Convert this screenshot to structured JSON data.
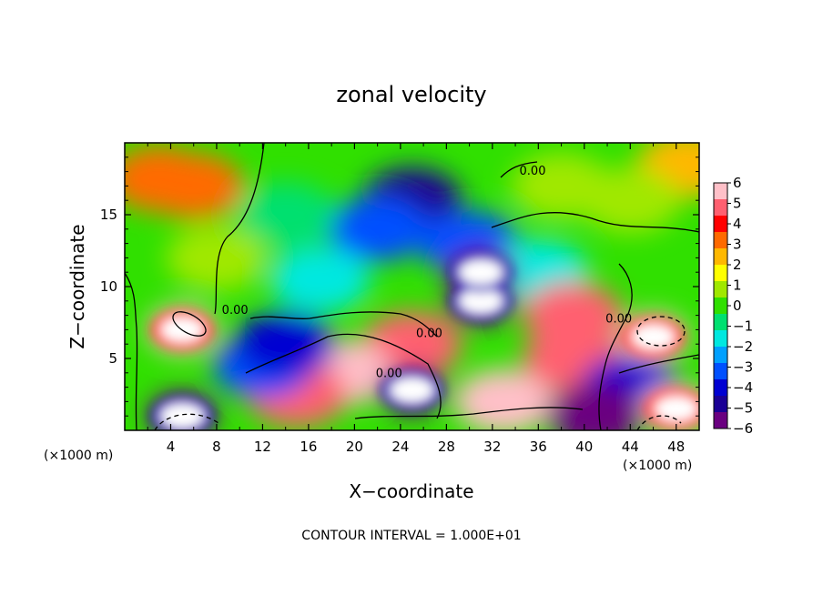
{
  "chart_data": {
    "type": "heatmap",
    "title": "zonal velocity",
    "xlabel": "X−coordinate",
    "ylabel": "Z−coordinate",
    "x_unit": "(×1000 m)",
    "y_unit": "(×1000 m)",
    "xlim": [
      0,
      50
    ],
    "ylim": [
      0,
      20
    ],
    "x_ticks": [
      4,
      8,
      12,
      16,
      20,
      24,
      28,
      32,
      36,
      40,
      44,
      48
    ],
    "y_ticks": [
      5,
      10,
      15
    ],
    "colorbar": {
      "min": -6,
      "max": 6,
      "ticks": [
        6,
        5,
        4,
        3,
        2,
        1,
        0,
        -1,
        -2,
        -3,
        -4,
        -5,
        -6
      ],
      "tick_labels": [
        "6",
        "5",
        "4",
        "3",
        "2",
        "1",
        "0",
        "−1",
        "−2",
        "−3",
        "−4",
        "−5",
        "−6"
      ],
      "colors": [
        "#6a0080",
        "#1a0095",
        "#0000d2",
        "#0050ff",
        "#00a0ff",
        "#00e8e0",
        "#00e070",
        "#30e000",
        "#a0e800",
        "#ffff00",
        "#ffb800",
        "#ff6a00",
        "#ff0000",
        "#ff6070",
        "#ffc0c8"
      ]
    },
    "contour_labels": [
      {
        "text": "0.00",
        "x": 35.5,
        "z": 17.8
      },
      {
        "text": "0.00",
        "x": 9.6,
        "z": 8.1
      },
      {
        "text": "0.00",
        "x": 26.5,
        "z": 6.5
      },
      {
        "text": "0.00",
        "x": 23.0,
        "z": 3.7
      },
      {
        "text": "0.00",
        "x": 43.0,
        "z": 7.5
      }
    ],
    "footnote": "CONTOUR INTERVAL = 1.000E+01",
    "grid": false,
    "legend": "colorbar-right",
    "features": [
      {
        "x": 25,
        "z": 16,
        "value": -4.5
      },
      {
        "x": 22,
        "z": 14,
        "value": -3.5
      },
      {
        "x": 30,
        "z": 13,
        "value": -3
      },
      {
        "x": 14,
        "z": 15,
        "value": -1
      },
      {
        "x": 3,
        "z": 17.5,
        "value": 3.5
      },
      {
        "x": 6,
        "z": 17,
        "value": 3.5
      },
      {
        "x": 49,
        "z": 18.5,
        "value": 2.5
      },
      {
        "x": 38,
        "z": 17,
        "value": 0.5
      },
      {
        "x": 44,
        "z": 16,
        "value": 1
      },
      {
        "x": 8,
        "z": 12,
        "value": 0.5
      },
      {
        "x": 36,
        "z": 11,
        "value": -1.5
      },
      {
        "x": 17,
        "z": 10.5,
        "value": -1.5
      },
      {
        "x": 5,
        "z": 7,
        "value": 8
      },
      {
        "x": 46,
        "z": 6.5,
        "value": 8
      },
      {
        "x": 31,
        "z": 9,
        "value": -8
      },
      {
        "x": 31,
        "z": 11,
        "value": -8
      },
      {
        "x": 25,
        "z": 6,
        "value": 5
      },
      {
        "x": 19,
        "z": 4,
        "value": 5.5
      },
      {
        "x": 15,
        "z": 2.5,
        "value": 5
      },
      {
        "x": 33,
        "z": 2,
        "value": 6
      },
      {
        "x": 39,
        "z": 8,
        "value": 4.5
      },
      {
        "x": 39,
        "z": 5,
        "value": 4.5
      },
      {
        "x": 25,
        "z": 2.8,
        "value": -8
      },
      {
        "x": 5,
        "z": 1,
        "value": -8
      },
      {
        "x": 12,
        "z": 4.5,
        "value": -3
      },
      {
        "x": 14,
        "z": 6,
        "value": -4
      },
      {
        "x": 44,
        "z": 3,
        "value": -4
      },
      {
        "x": 48,
        "z": 1.5,
        "value": 8
      },
      {
        "x": 41,
        "z": 1,
        "value": -6
      }
    ]
  }
}
